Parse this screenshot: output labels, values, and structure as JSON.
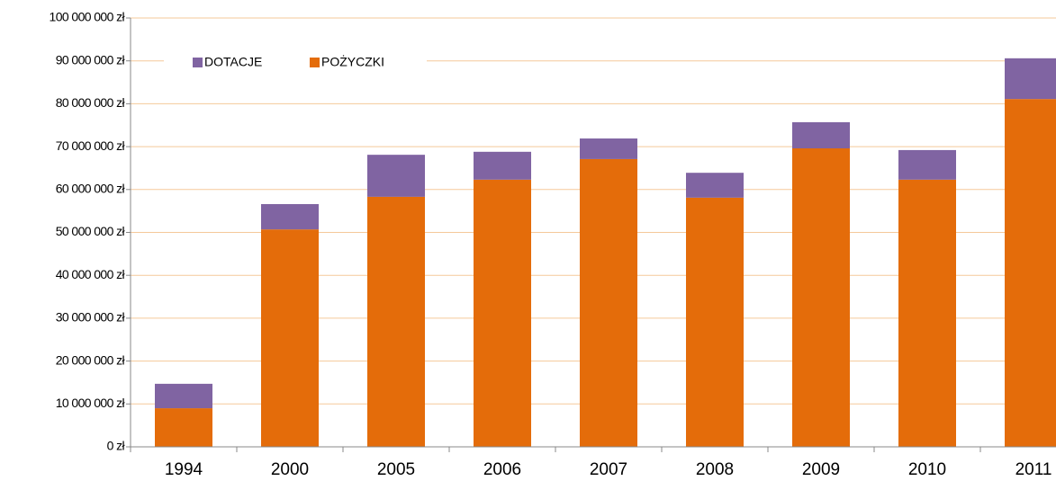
{
  "chart_data": {
    "type": "stacked_bar",
    "categories": [
      "1994",
      "2000",
      "2005",
      "2006",
      "2007",
      "2008",
      "2009",
      "2010",
      "2011"
    ],
    "series": [
      {
        "name": "DOTACJE",
        "color": "#8064a2",
        "values": [
          5700000,
          5900000,
          9800000,
          6500000,
          4800000,
          5800000,
          6100000,
          6900000,
          9500000
        ]
      },
      {
        "name": "POŻYCZKI",
        "color": "#e46c0a",
        "values": [
          9000000,
          50700000,
          58300000,
          62300000,
          67100000,
          58100000,
          69600000,
          62300000,
          81100000
        ]
      }
    ],
    "ylim": [
      0,
      100000000
    ],
    "yticks": [
      {
        "value": 0,
        "label": "0 zł"
      },
      {
        "value": 10000000,
        "label": "10 000 000 zł"
      },
      {
        "value": 20000000,
        "label": "20 000 000 zł"
      },
      {
        "value": 30000000,
        "label": "30 000 000 zł"
      },
      {
        "value": 40000000,
        "label": "40 000 000 zł"
      },
      {
        "value": 50000000,
        "label": "50 000 000 zł"
      },
      {
        "value": 60000000,
        "label": "60 000 000 zł"
      },
      {
        "value": 70000000,
        "label": "70 000 000 zł"
      },
      {
        "value": 80000000,
        "label": "80 000 000 zł"
      },
      {
        "value": 90000000,
        "label": "90 000 000 zł"
      },
      {
        "value": 100000000,
        "label": "100 000 000 zł"
      }
    ],
    "grid": true,
    "grid_color": "#f5c99a",
    "legend": "top-left"
  }
}
